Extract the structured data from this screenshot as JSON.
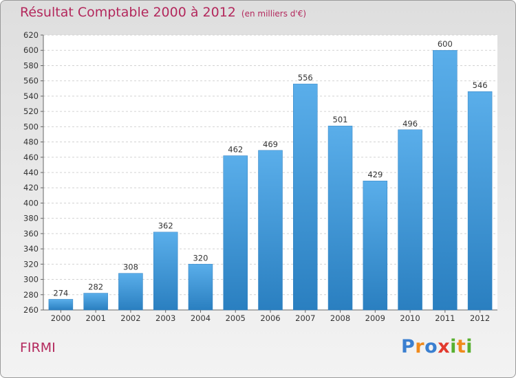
{
  "chart_data": {
    "type": "bar",
    "title": "Résultat Comptable 2000 à 2012",
    "subtitle": "(en milliers d'€)",
    "categories": [
      "2000",
      "2001",
      "2002",
      "2003",
      "2004",
      "2005",
      "2006",
      "2007",
      "2008",
      "2009",
      "2010",
      "2011",
      "2012"
    ],
    "values": [
      274,
      282,
      308,
      362,
      320,
      462,
      469,
      556,
      501,
      429,
      496,
      600,
      546
    ],
    "ylim": [
      260,
      620
    ],
    "ytick_step": 20,
    "grid": true,
    "xlabel": "",
    "ylabel": "",
    "bar_color_top": "#5aaeea",
    "bar_color_bottom": "#2a7fc0",
    "title_color": "#b3285c"
  },
  "commune_name": "FIRMI",
  "logo": {
    "letters": [
      "P",
      "r",
      "o",
      "x",
      "i",
      "t",
      "i"
    ],
    "colors": [
      "#3a7fd0",
      "#f08a1c",
      "#3a7fd0",
      "#e23a2e",
      "#58b030",
      "#f08a1c",
      "#58b030"
    ]
  }
}
